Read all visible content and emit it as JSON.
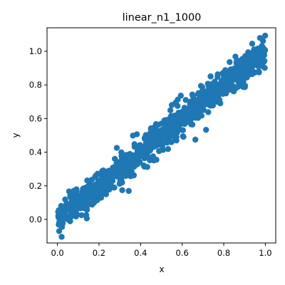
{
  "chart_data": {
    "type": "scatter",
    "title": "linear_n1_1000",
    "xlabel": "x",
    "ylabel": "y",
    "xlim": [
      -0.05,
      1.05
    ],
    "ylim": [
      -0.14,
      1.14
    ],
    "xticks": [
      0.0,
      0.2,
      0.4,
      0.6,
      0.8,
      1.0
    ],
    "xtick_labels": [
      "0.0",
      "0.2",
      "0.4",
      "0.6",
      "0.8",
      "1.0"
    ],
    "yticks": [
      0.0,
      0.2,
      0.4,
      0.6,
      0.8,
      1.0
    ],
    "ytick_labels": [
      "0.0",
      "0.2",
      "0.4",
      "0.6",
      "0.8",
      "1.0"
    ],
    "grid": false,
    "marker_color": "#1f77b4",
    "trend": {
      "slope": 1.0,
      "intercept": 0.0,
      "noise_sd": 0.045,
      "x_range": [
        0,
        1
      ]
    },
    "series": [
      {
        "x": [
          0.0,
          0.02,
          0.04,
          0.06,
          0.08,
          0.1,
          0.12,
          0.14,
          0.16,
          0.18,
          0.2,
          0.22,
          0.24,
          0.26,
          0.28,
          0.3,
          0.32,
          0.34,
          0.36,
          0.38,
          0.4,
          0.42,
          0.44,
          0.46,
          0.48,
          0.5,
          0.52,
          0.54,
          0.56,
          0.58,
          0.6,
          0.62,
          0.64,
          0.66,
          0.68,
          0.7,
          0.72,
          0.74,
          0.76,
          0.78,
          0.8,
          0.82,
          0.84,
          0.86,
          0.88,
          0.9,
          0.92,
          0.94,
          0.96,
          0.98,
          1.0
        ],
        "y": [
          0.0,
          0.02,
          0.04,
          0.06,
          0.08,
          0.1,
          0.12,
          0.14,
          0.16,
          0.18,
          0.2,
          0.22,
          0.24,
          0.26,
          0.28,
          0.3,
          0.32,
          0.34,
          0.36,
          0.38,
          0.4,
          0.42,
          0.44,
          0.46,
          0.48,
          0.5,
          0.52,
          0.54,
          0.56,
          0.58,
          0.6,
          0.62,
          0.64,
          0.66,
          0.68,
          0.7,
          0.72,
          0.74,
          0.76,
          0.78,
          0.8,
          0.82,
          0.84,
          0.86,
          0.88,
          0.9,
          0.92,
          0.94,
          0.96,
          0.98,
          1.0
        ]
      }
    ],
    "n_points": 1000
  }
}
